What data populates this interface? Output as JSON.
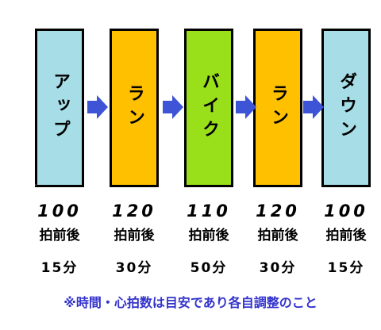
{
  "colors": {
    "warmup": "#a6dde6",
    "run": "#ffc000",
    "bike": "#99e01a",
    "cooldown": "#a6dde6",
    "arrow": "#3d54d6",
    "note": "#3333cc"
  },
  "stages": [
    {
      "label": "アップ",
      "bpm": "100",
      "bpm_unit": "拍前後",
      "duration": "15分",
      "color_key": "warmup"
    },
    {
      "label": "ラン",
      "bpm": "120",
      "bpm_unit": "拍前後",
      "duration": "30分",
      "color_key": "run"
    },
    {
      "label": "バイク",
      "bpm": "110",
      "bpm_unit": "拍前後",
      "duration": "50分",
      "color_key": "bike"
    },
    {
      "label": "ラン",
      "bpm": "120",
      "bpm_unit": "拍前後",
      "duration": "30分",
      "color_key": "run"
    },
    {
      "label": "ダウン",
      "bpm": "100",
      "bpm_unit": "拍前後",
      "duration": "15分",
      "color_key": "cooldown"
    }
  ],
  "arrows": [
    "arrow-icon",
    "arrow-icon",
    "arrow-icon",
    "arrow-icon"
  ],
  "note": "※時間・心拍数は目安であり各自調整のこと"
}
